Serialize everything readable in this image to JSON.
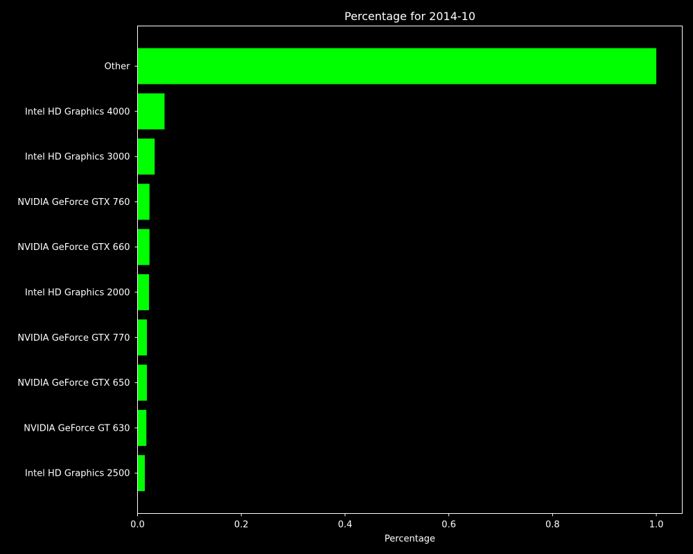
{
  "chart_data": {
    "type": "bar",
    "orientation": "horizontal",
    "title": "Percentage for 2014-10",
    "xlabel": "Percentage",
    "ylabel": "",
    "categories": [
      "Other",
      "Intel HD Graphics 4000",
      "Intel HD Graphics 3000",
      "NVIDIA GeForce GTX 760",
      "NVIDIA GeForce GTX 660",
      "Intel HD Graphics 2000",
      "NVIDIA GeForce GTX 770",
      "NVIDIA GeForce GTX 650",
      "NVIDIA GeForce GT 630",
      "Intel HD Graphics 2500"
    ],
    "values": [
      1.0,
      0.052,
      0.033,
      0.023,
      0.023,
      0.022,
      0.018,
      0.018,
      0.017,
      0.014
    ],
    "xlim": [
      0,
      1.05
    ],
    "xticks": [
      0.0,
      0.2,
      0.4,
      0.6,
      0.8,
      1.0
    ],
    "xtick_labels": [
      "0.0",
      "0.2",
      "0.4",
      "0.6",
      "0.8",
      "1.0"
    ],
    "grid": false,
    "legend": "none",
    "colors": {
      "background": "#000000",
      "bar": "#00ff00",
      "axis": "#ffffff",
      "text": "#ffffff"
    }
  }
}
